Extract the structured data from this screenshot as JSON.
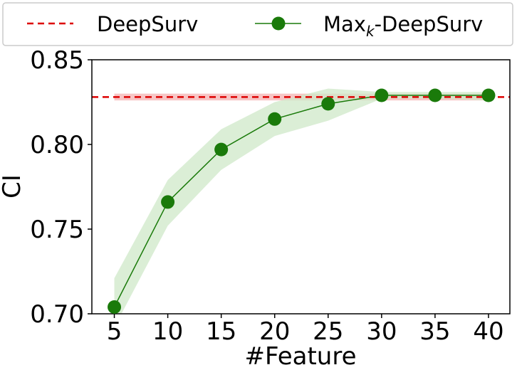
{
  "chart_data": {
    "type": "line",
    "xlabel": "#Feature",
    "ylabel": "CI",
    "xlim": [
      2.9,
      42.0
    ],
    "ylim": [
      0.7,
      0.85
    ],
    "xticks": [
      {
        "value": 5,
        "label": "5"
      },
      {
        "value": 10,
        "label": "10"
      },
      {
        "value": 15,
        "label": "15"
      },
      {
        "value": 20,
        "label": "20"
      },
      {
        "value": 25,
        "label": "25"
      },
      {
        "value": 30,
        "label": "30"
      },
      {
        "value": 35,
        "label": "35"
      },
      {
        "value": 40,
        "label": "40"
      }
    ],
    "yticks": [
      {
        "value": 0.7,
        "label": "0.70"
      },
      {
        "value": 0.75,
        "label": "0.75"
      },
      {
        "value": 0.8,
        "label": "0.80"
      },
      {
        "value": 0.85,
        "label": "0.85"
      }
    ],
    "legend": {
      "placement": "top",
      "entries": [
        {
          "label": "DeepSurv",
          "label_sub": "",
          "label_rest": "",
          "color": "#dd0000",
          "style": "dashed"
        },
        {
          "label": "Max",
          "label_sub": "k",
          "label_rest": "-DeepSurv",
          "color": "#1a7a0a",
          "style": "line-marker"
        }
      ]
    },
    "series": [
      {
        "name": "DeepSurv",
        "kind": "hline",
        "y": 0.828,
        "band": [
          0.826,
          0.83
        ],
        "color": "#dd0000",
        "band_color": "#f5b7b7"
      },
      {
        "name": "Max_k-DeepSurv",
        "kind": "line-marker",
        "color": "#1a7a0a",
        "band_color": "#cfe8c8",
        "x": [
          5,
          10,
          15,
          20,
          25,
          30,
          35,
          40
        ],
        "y": [
          0.704,
          0.766,
          0.797,
          0.815,
          0.824,
          0.829,
          0.829,
          0.829
        ],
        "lower": [
          0.692,
          0.752,
          0.785,
          0.805,
          0.814,
          0.827,
          0.827,
          0.826
        ],
        "upper": [
          0.721,
          0.779,
          0.809,
          0.825,
          0.833,
          0.831,
          0.831,
          0.831
        ]
      }
    ],
    "grid": false
  }
}
